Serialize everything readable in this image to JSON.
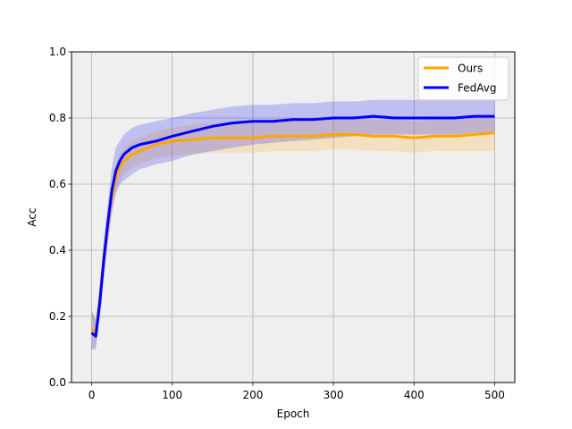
{
  "chart_data": {
    "type": "line",
    "title": "",
    "xlabel": "Epoch",
    "ylabel": "Acc",
    "xlim": [
      -25,
      525
    ],
    "ylim": [
      0.0,
      1.0
    ],
    "xticks": [
      0,
      100,
      200,
      300,
      400,
      500
    ],
    "yticks": [
      0.0,
      0.2,
      0.4,
      0.6,
      0.8,
      1.0
    ],
    "xtick_labels": [
      "0",
      "100",
      "200",
      "300",
      "400",
      "500"
    ],
    "ytick_labels": [
      "0.0",
      "0.2",
      "0.4",
      "0.6",
      "0.8",
      "1.0"
    ],
    "grid": true,
    "background": "#efefef",
    "legend_position": "top-right",
    "series": [
      {
        "name": "Ours",
        "color": "#ffa500",
        "band_alpha": 0.2,
        "x": [
          0,
          5,
          10,
          15,
          20,
          25,
          30,
          35,
          40,
          50,
          60,
          80,
          100,
          125,
          150,
          175,
          200,
          225,
          250,
          275,
          300,
          325,
          350,
          375,
          400,
          425,
          450,
          475,
          500
        ],
        "y": [
          0.16,
          0.15,
          0.25,
          0.38,
          0.47,
          0.56,
          0.62,
          0.65,
          0.67,
          0.69,
          0.7,
          0.72,
          0.73,
          0.735,
          0.74,
          0.74,
          0.74,
          0.745,
          0.745,
          0.745,
          0.75,
          0.75,
          0.745,
          0.745,
          0.74,
          0.745,
          0.745,
          0.75,
          0.755
        ],
        "lower": [
          0.1,
          0.11,
          0.2,
          0.33,
          0.42,
          0.52,
          0.58,
          0.61,
          0.63,
          0.65,
          0.66,
          0.68,
          0.685,
          0.69,
          0.695,
          0.695,
          0.695,
          0.7,
          0.7,
          0.7,
          0.705,
          0.705,
          0.7,
          0.7,
          0.695,
          0.7,
          0.7,
          0.7,
          0.7
        ],
        "upper": [
          0.22,
          0.19,
          0.3,
          0.43,
          0.52,
          0.6,
          0.66,
          0.69,
          0.71,
          0.73,
          0.74,
          0.76,
          0.77,
          0.78,
          0.785,
          0.79,
          0.79,
          0.79,
          0.795,
          0.795,
          0.8,
          0.8,
          0.795,
          0.795,
          0.79,
          0.795,
          0.795,
          0.8,
          0.805
        ]
      },
      {
        "name": "FedAvg",
        "color": "#0000ff",
        "band_alpha": 0.2,
        "x": [
          0,
          5,
          10,
          15,
          20,
          25,
          30,
          35,
          40,
          50,
          60,
          80,
          100,
          125,
          150,
          175,
          200,
          225,
          250,
          275,
          300,
          325,
          350,
          375,
          400,
          425,
          450,
          475,
          500
        ],
        "y": [
          0.15,
          0.14,
          0.24,
          0.37,
          0.48,
          0.58,
          0.64,
          0.67,
          0.69,
          0.71,
          0.72,
          0.73,
          0.745,
          0.76,
          0.775,
          0.785,
          0.79,
          0.79,
          0.795,
          0.795,
          0.8,
          0.8,
          0.805,
          0.8,
          0.8,
          0.8,
          0.8,
          0.805,
          0.805
        ],
        "lower": [
          0.1,
          0.1,
          0.19,
          0.31,
          0.42,
          0.51,
          0.57,
          0.6,
          0.61,
          0.63,
          0.645,
          0.66,
          0.67,
          0.69,
          0.7,
          0.71,
          0.72,
          0.725,
          0.73,
          0.735,
          0.74,
          0.745,
          0.75,
          0.75,
          0.75,
          0.75,
          0.75,
          0.755,
          0.755
        ],
        "upper": [
          0.22,
          0.19,
          0.29,
          0.43,
          0.54,
          0.65,
          0.71,
          0.73,
          0.75,
          0.77,
          0.78,
          0.79,
          0.8,
          0.815,
          0.825,
          0.835,
          0.84,
          0.84,
          0.845,
          0.845,
          0.85,
          0.85,
          0.855,
          0.855,
          0.855,
          0.855,
          0.855,
          0.855,
          0.855
        ]
      }
    ]
  }
}
